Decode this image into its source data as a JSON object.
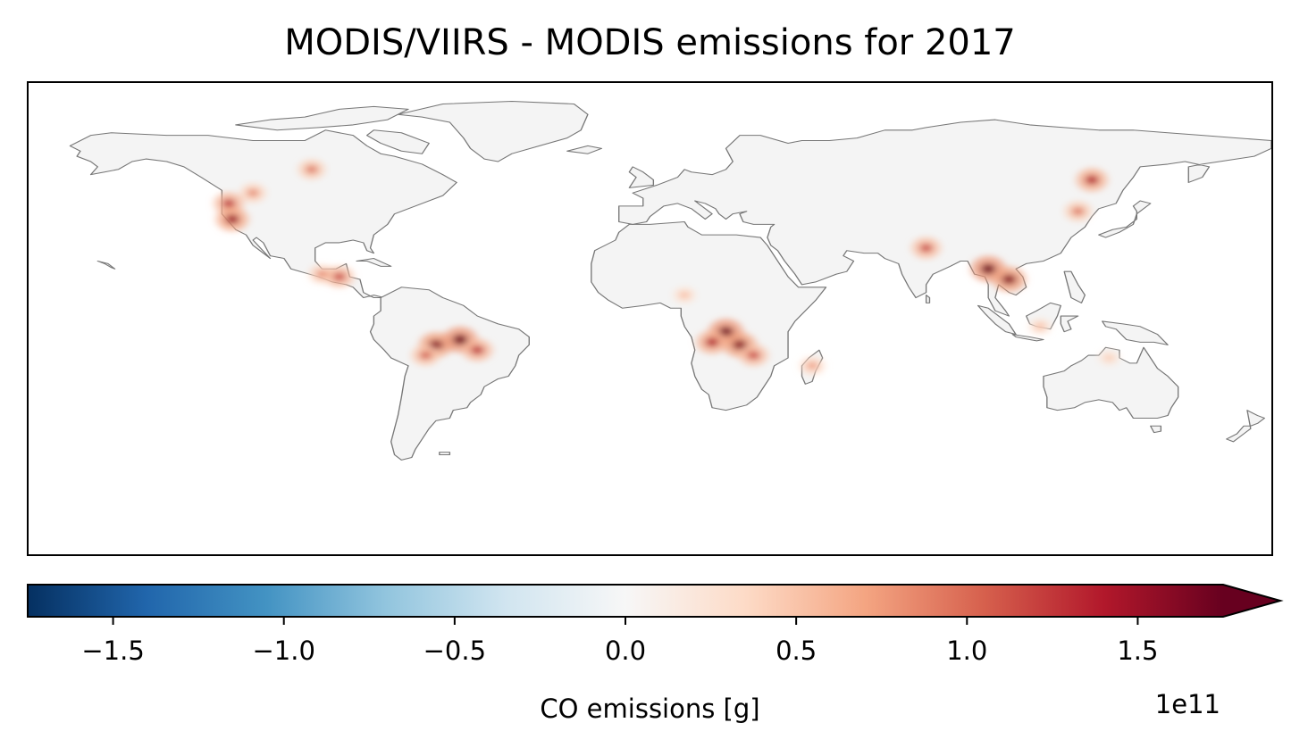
{
  "title": "MODIS/VIIRS - MODIS emissions for 2017",
  "colorbar": {
    "label": "CO emissions [g]",
    "offset_text": "1e11",
    "min": -1.75,
    "max": 1.75,
    "extend": "max",
    "colormap": "RdBu_r",
    "ticks": [
      {
        "value": -1.5,
        "label": "−1.5"
      },
      {
        "value": -1.0,
        "label": "−1.0"
      },
      {
        "value": -0.5,
        "label": "−0.5"
      },
      {
        "value": 0.0,
        "label": "0.0"
      },
      {
        "value": 0.5,
        "label": "0.5"
      },
      {
        "value": 1.0,
        "label": "1.0"
      },
      {
        "value": 1.5,
        "label": "1.5"
      }
    ],
    "stops": [
      "#053061",
      "#2166ac",
      "#4393c3",
      "#92c5de",
      "#d1e5f0",
      "#f7f7f7",
      "#fddbc7",
      "#f4a582",
      "#d6604d",
      "#b2182b",
      "#67001f"
    ]
  },
  "map": {
    "projection": "PlateCarree",
    "extent": {
      "lon": [
        -180,
        180
      ],
      "lat": [
        -90,
        90
      ]
    },
    "land_color": "#f4f4f4",
    "coastline_color": "#777777",
    "hotspots": [
      {
        "region": "Western North America",
        "lon": -122,
        "lat": 44,
        "intensity": 1.3
      },
      {
        "region": "Western North America",
        "lon": -121,
        "lat": 38,
        "intensity": 1.5
      },
      {
        "region": "Western North America",
        "lon": -115,
        "lat": 48,
        "intensity": 0.9
      },
      {
        "region": "Canada",
        "lon": -98,
        "lat": 57,
        "intensity": 1.0
      },
      {
        "region": "Central America",
        "lon": -95,
        "lat": 17,
        "intensity": 0.9
      },
      {
        "region": "Central America",
        "lon": -90,
        "lat": 16,
        "intensity": 1.2
      },
      {
        "region": "Amazon",
        "lon": -62,
        "lat": -10,
        "intensity": 1.6
      },
      {
        "region": "Amazon",
        "lon": -55,
        "lat": -8,
        "intensity": 1.7
      },
      {
        "region": "Amazon",
        "lon": -50,
        "lat": -12,
        "intensity": 1.3
      },
      {
        "region": "Amazon",
        "lon": -65,
        "lat": -14,
        "intensity": 1.1
      },
      {
        "region": "Central Africa",
        "lon": 22,
        "lat": -5,
        "intensity": 1.7
      },
      {
        "region": "Central Africa",
        "lon": 26,
        "lat": -10,
        "intensity": 1.6
      },
      {
        "region": "Central Africa",
        "lon": 18,
        "lat": -9,
        "intensity": 1.4
      },
      {
        "region": "Central Africa",
        "lon": 30,
        "lat": -14,
        "intensity": 1.2
      },
      {
        "region": "Sahel",
        "lon": 10,
        "lat": 9,
        "intensity": 0.6
      },
      {
        "region": "Southeast Asia",
        "lon": 98,
        "lat": 19,
        "intensity": 1.7
      },
      {
        "region": "Southeast Asia",
        "lon": 104,
        "lat": 15,
        "intensity": 1.6
      },
      {
        "region": "South Asia",
        "lon": 80,
        "lat": 27,
        "intensity": 1.2
      },
      {
        "region": "Siberia",
        "lon": 128,
        "lat": 53,
        "intensity": 1.4
      },
      {
        "region": "Northeast China",
        "lon": 124,
        "lat": 41,
        "intensity": 1.0
      },
      {
        "region": "Indonesia",
        "lon": 113,
        "lat": -3,
        "intensity": 0.6
      },
      {
        "region": "Australia",
        "lon": 133,
        "lat": -15,
        "intensity": 0.5
      },
      {
        "region": "Madagascar",
        "lon": 47,
        "lat": -18,
        "intensity": 0.8
      }
    ]
  }
}
